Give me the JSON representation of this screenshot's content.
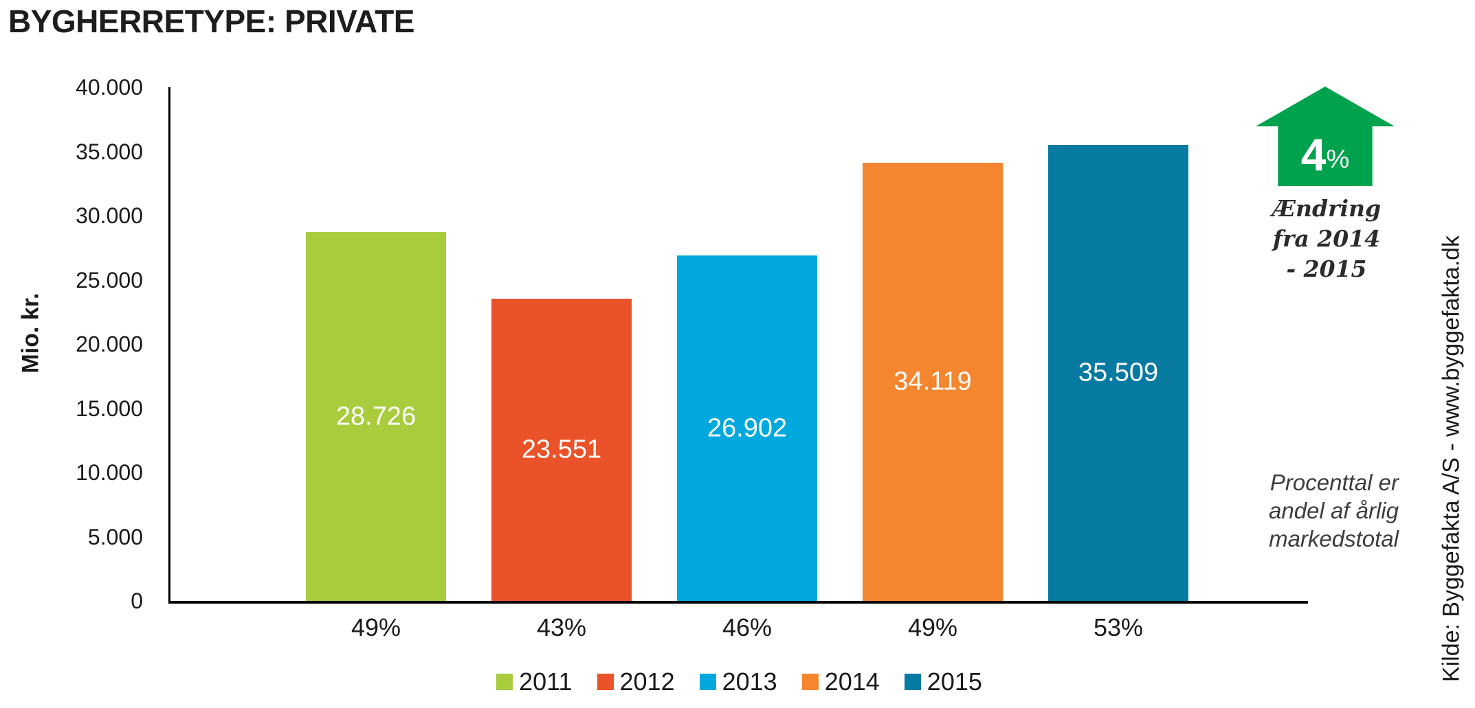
{
  "title": "BYGHERRETYPE: PRIVATE",
  "chart_data": {
    "type": "bar",
    "title": "BYGHERRETYPE: PRIVATE",
    "ylabel": "Mio. kr.",
    "xlabel": "",
    "ylim": [
      0,
      40000
    ],
    "ytick_step": 5000,
    "ytick_labels": [
      "0",
      "5.000",
      "10.000",
      "15.000",
      "20.000",
      "25.000",
      "30.000",
      "35.000",
      "40.000"
    ],
    "categories": [
      "2011",
      "2012",
      "2013",
      "2014",
      "2015"
    ],
    "values": [
      28726,
      23551,
      26902,
      34119,
      35509
    ],
    "value_labels": [
      "28.726",
      "23.551",
      "26.902",
      "34.119",
      "35.509"
    ],
    "share_labels": [
      "49%",
      "43%",
      "46%",
      "49%",
      "53%"
    ],
    "colors": [
      "#a8cc3c",
      "#ea5329",
      "#00a8dd",
      "#f58630",
      "#077aa2"
    ],
    "grid": false,
    "legend_position": "bottom"
  },
  "annotation": {
    "change_value": "4",
    "change_unit": "%",
    "arrow_color": "#00a24e",
    "change_label_lines": [
      "Ændring",
      "fra 2014",
      "- 2015"
    ],
    "note_lines": [
      "Procenttal er",
      "andel af årlig",
      "markedstotal"
    ]
  },
  "source": "Kilde: Byggefakta A/S - www.byggefakta.dk"
}
